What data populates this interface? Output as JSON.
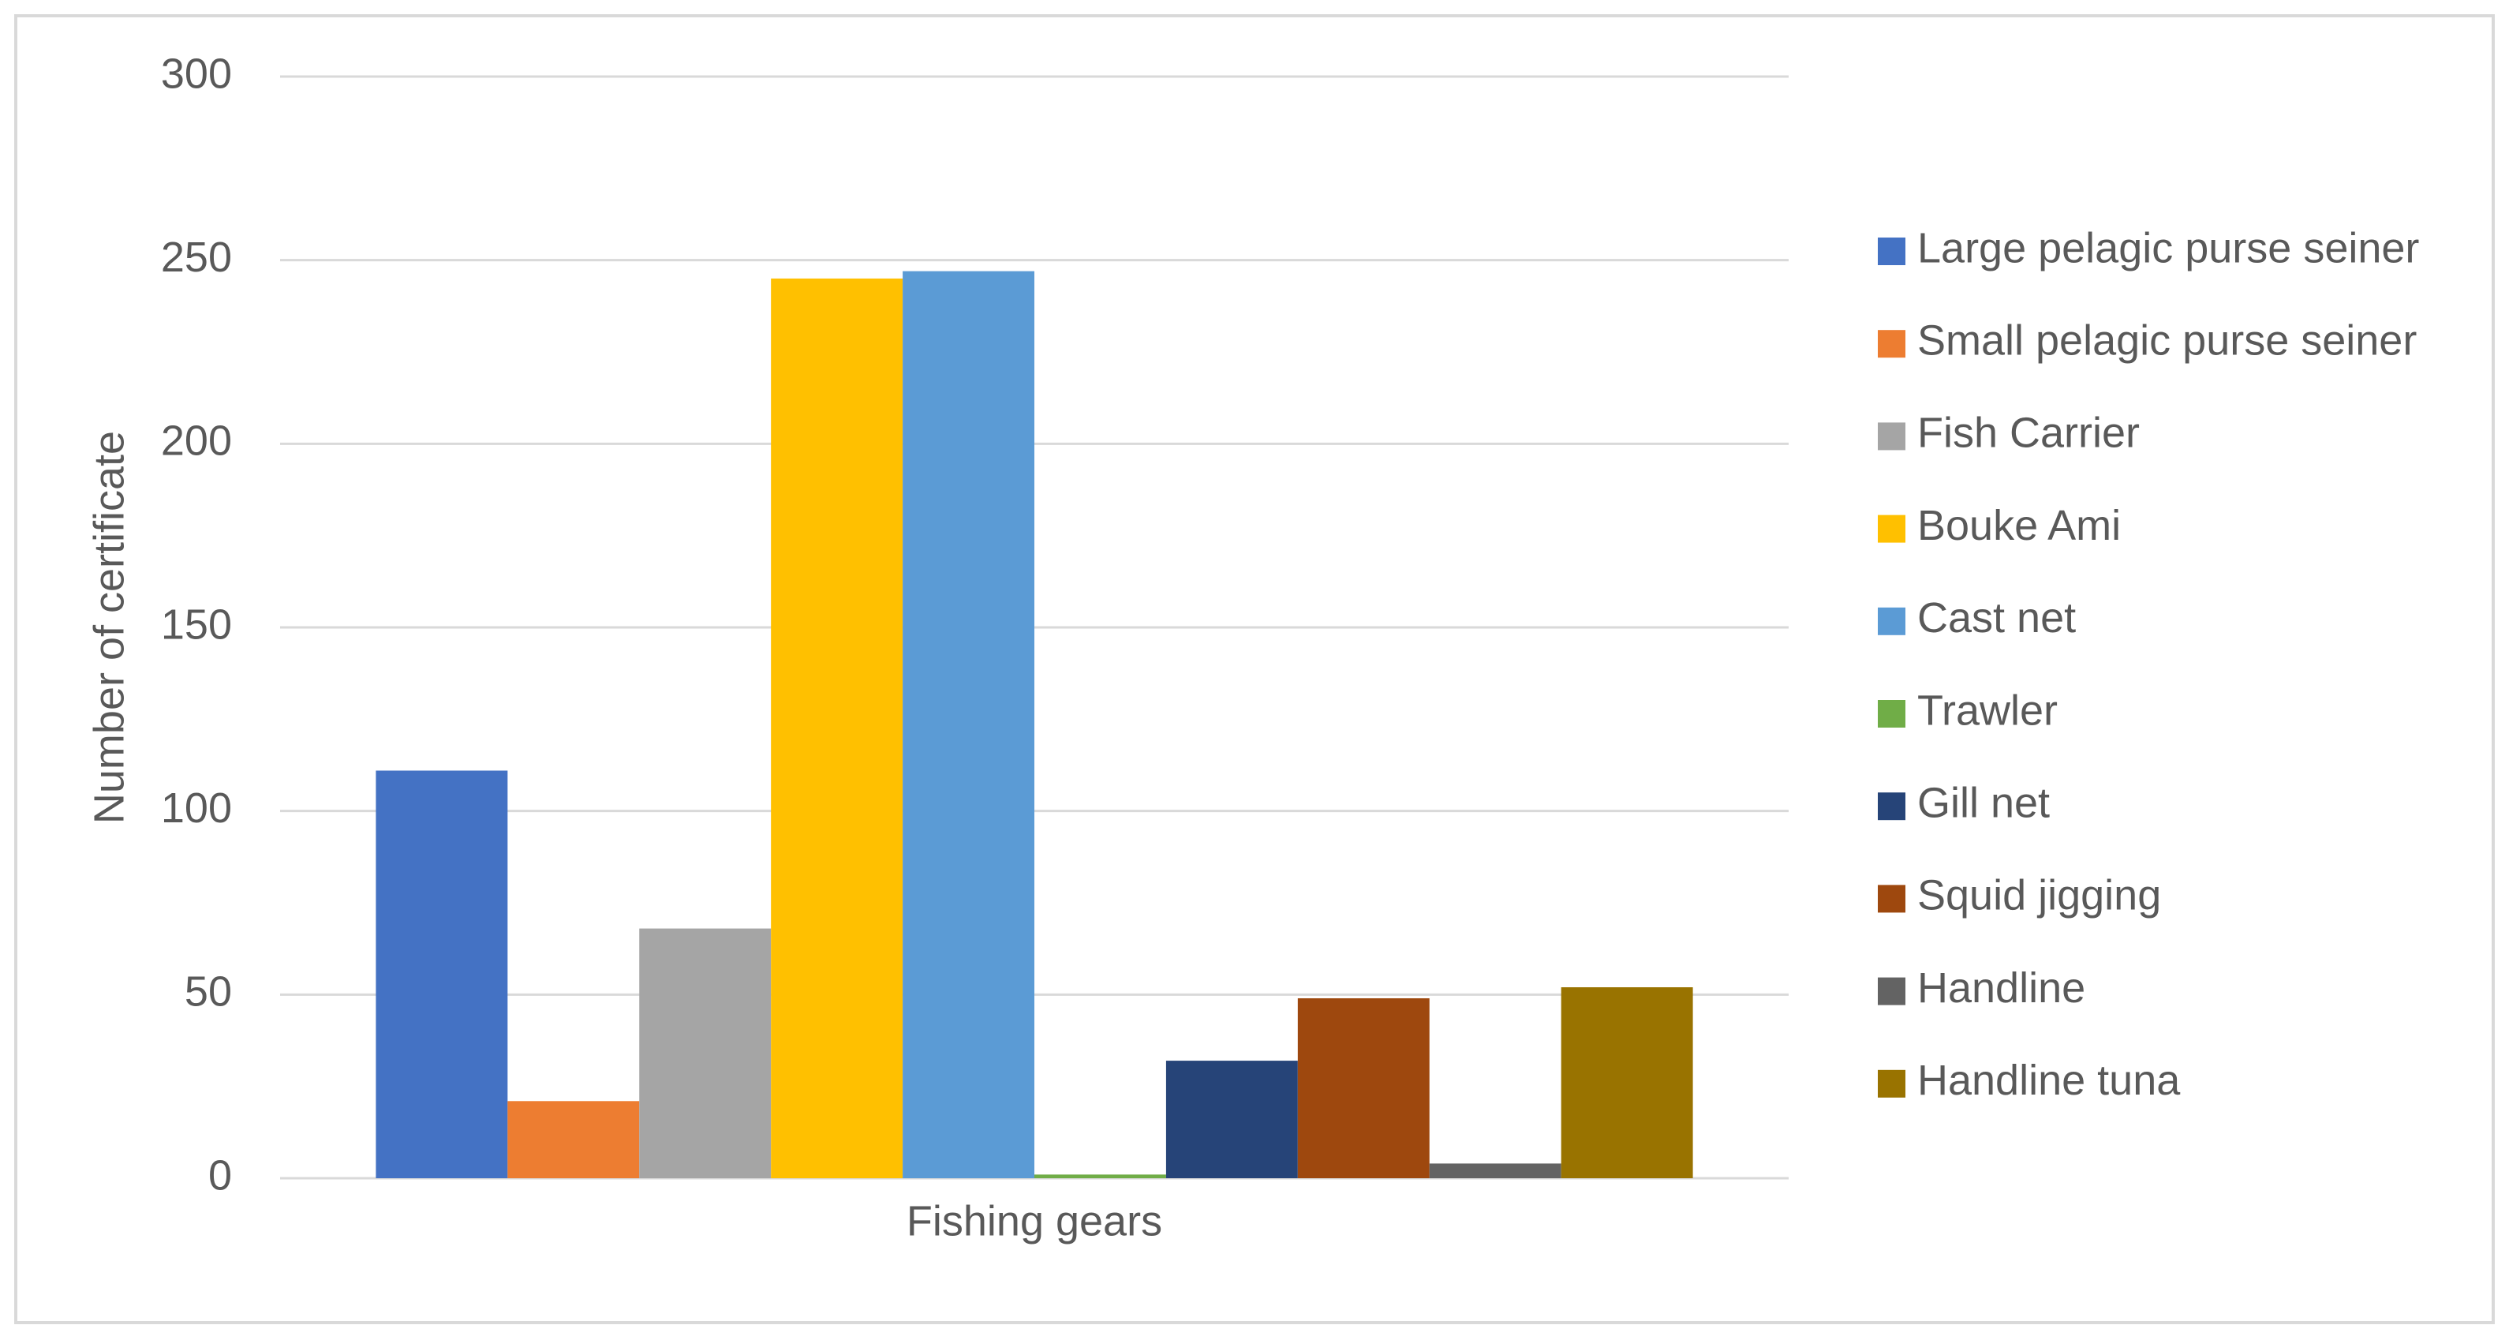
{
  "chart_data": {
    "type": "bar",
    "y_label": "Number of certificate",
    "categories": [
      "Fishing gears"
    ],
    "series": [
      {
        "name": "Large pelagic purse seiner",
        "color": "#4472c4",
        "values": [
          111
        ]
      },
      {
        "name": "Small pelagic purse seiner",
        "color": "#ed7d31",
        "values": [
          21
        ]
      },
      {
        "name": "Fish Carrier",
        "color": "#a5a5a5",
        "values": [
          68
        ]
      },
      {
        "name": "Bouke Ami",
        "color": "#ffc000",
        "values": [
          245
        ]
      },
      {
        "name": "Cast net",
        "color": "#5b9bd5",
        "values": [
          247
        ]
      },
      {
        "name": "Trawler",
        "color": "#70ad47",
        "values": [
          1
        ]
      },
      {
        "name": "Gill net",
        "color": "#264478",
        "values": [
          32
        ]
      },
      {
        "name": "Squid jigging",
        "color": "#9e480e",
        "values": [
          49
        ]
      },
      {
        "name": "Handline",
        "color": "#636363",
        "values": [
          4
        ]
      },
      {
        "name": "Handline tuna",
        "color": "#997300",
        "values": [
          52
        ]
      }
    ],
    "ylim": [
      0,
      300
    ],
    "yticks": [
      0,
      50,
      100,
      150,
      200,
      250,
      300
    ],
    "grid": true,
    "legend": "right"
  }
}
